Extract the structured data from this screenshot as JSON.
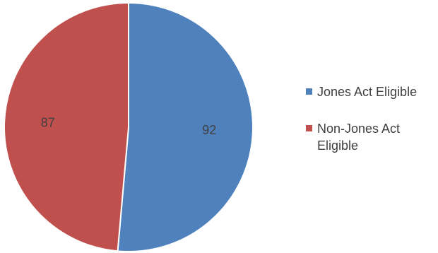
{
  "chart_data": {
    "type": "pie",
    "categories": [
      "Jones Act Eligible",
      "Non-Jones Act Eligible"
    ],
    "values": [
      92,
      87
    ],
    "colors": [
      "#4f81bd",
      "#c0504d"
    ],
    "data_labels": [
      "92",
      "87"
    ],
    "start_angle_deg": 90,
    "direction": "clockwise",
    "legend_position": "right"
  }
}
